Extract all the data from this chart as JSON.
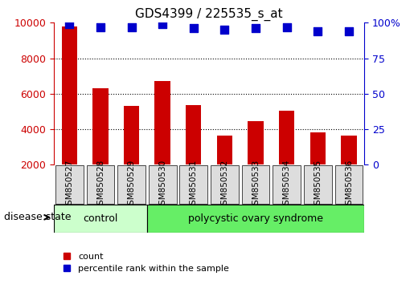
{
  "title": "GDS4399 / 225535_s_at",
  "samples": [
    "GSM850527",
    "GSM850528",
    "GSM850529",
    "GSM850530",
    "GSM850531",
    "GSM850532",
    "GSM850533",
    "GSM850534",
    "GSM850535",
    "GSM850536"
  ],
  "counts": [
    9800,
    6300,
    5300,
    6700,
    5350,
    3650,
    4450,
    5050,
    3800,
    3650
  ],
  "percentiles": [
    99,
    97,
    97,
    99,
    96,
    95,
    96,
    97,
    94,
    94
  ],
  "bar_color": "#cc0000",
  "dot_color": "#0000cc",
  "left_axis_color": "#cc0000",
  "right_axis_color": "#0000cc",
  "ylim_left": [
    2000,
    10000
  ],
  "ylim_right": [
    0,
    100
  ],
  "yticks_left": [
    2000,
    4000,
    6000,
    8000,
    10000
  ],
  "yticks_right": [
    0,
    25,
    50,
    75,
    100
  ],
  "grid_color": "#000000",
  "background_color": "#ffffff",
  "control_label": "control",
  "disease_label": "polycystic ovary syndrome",
  "disease_state_label": "disease state",
  "control_color": "#ccffcc",
  "disease_color": "#66ee66",
  "control_samples": 3,
  "legend_count_label": "count",
  "legend_pct_label": "percentile rank within the sample",
  "tick_label_color_left": "#cc0000",
  "tick_label_color_right": "#0000cc",
  "xticklabel_bg": "#dddddd",
  "dot_size": 60,
  "bar_width": 0.5
}
